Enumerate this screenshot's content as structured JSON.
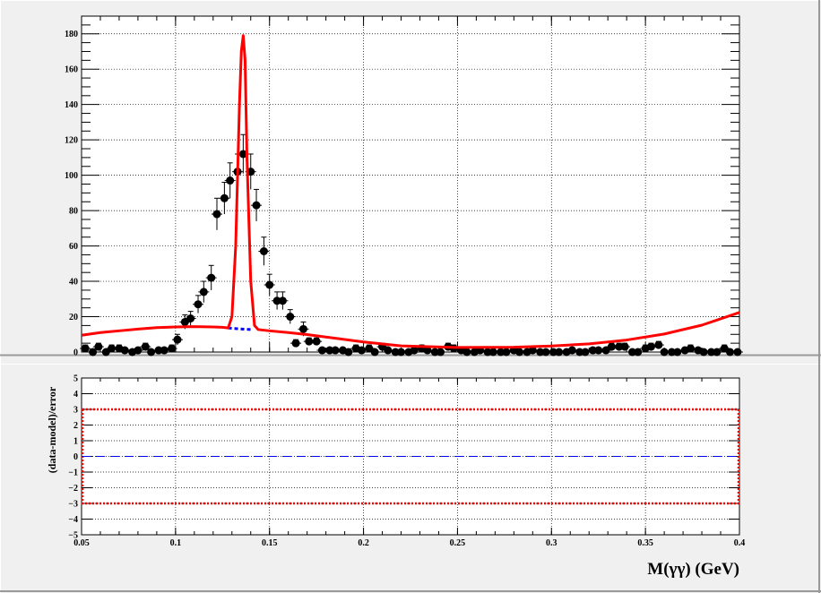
{
  "chart_data": [
    {
      "type": "scatter",
      "panel": "top",
      "title": "",
      "xlabel": "",
      "ylabel": "",
      "xlim": [
        0.05,
        0.4
      ],
      "ylim": [
        0,
        190
      ],
      "grid": true,
      "x_ticks": [
        "0.05",
        "0.1",
        "0.15",
        "0.2",
        "0.25",
        "0.3",
        "0.35",
        "0.4"
      ],
      "y_ticks": [
        "0",
        "20",
        "40",
        "60",
        "80",
        "100",
        "120",
        "140",
        "160",
        "180"
      ],
      "colors": {
        "data": "#000000",
        "model": "#ff0000",
        "background": "#0000ff"
      },
      "series": [
        {
          "kind": "points_with_errors",
          "x": [
            0.052,
            0.056,
            0.059,
            0.063,
            0.066,
            0.07,
            0.073,
            0.077,
            0.08,
            0.084,
            0.087,
            0.091,
            0.094,
            0.098,
            0.101,
            0.105,
            0.108,
            0.112,
            0.115,
            0.119,
            0.122,
            0.126,
            0.129,
            0.133,
            0.136,
            0.14,
            0.143,
            0.147,
            0.15,
            0.154,
            0.157,
            0.161,
            0.164,
            0.168,
            0.171,
            0.175,
            0.178,
            0.182,
            0.185,
            0.189,
            0.192,
            0.196,
            0.199,
            0.203,
            0.206,
            0.21,
            0.213,
            0.217,
            0.22,
            0.224,
            0.227,
            0.231,
            0.234,
            0.238,
            0.241,
            0.245,
            0.248,
            0.252,
            0.255,
            0.259,
            0.262,
            0.266,
            0.269,
            0.273,
            0.276,
            0.28,
            0.283,
            0.287,
            0.29,
            0.294,
            0.297,
            0.301,
            0.304,
            0.308,
            0.311,
            0.315,
            0.318,
            0.322,
            0.325,
            0.329,
            0.332,
            0.336,
            0.339,
            0.343,
            0.346,
            0.35,
            0.353,
            0.357,
            0.36,
            0.364,
            0.367,
            0.371,
            0.374,
            0.378,
            0.381,
            0.385,
            0.388,
            0.392,
            0.395,
            0.399
          ],
          "y": [
            2,
            0,
            3,
            0,
            2,
            2,
            1,
            0,
            1,
            3,
            0,
            1,
            1,
            2,
            7,
            17,
            19,
            27,
            34,
            42,
            78,
            87,
            97,
            102,
            112,
            102,
            83,
            57,
            38,
            29,
            29,
            20,
            5,
            13,
            6,
            6,
            1,
            1,
            1,
            1,
            0,
            2,
            1,
            2,
            0,
            3,
            1,
            0,
            0,
            0,
            1,
            2,
            1,
            0,
            0,
            3,
            2,
            1,
            0,
            0,
            1,
            0,
            0,
            0,
            0,
            1,
            0,
            0,
            1,
            0,
            0,
            0,
            0,
            0,
            1,
            0,
            0,
            1,
            1,
            1,
            3,
            3,
            3,
            0,
            0,
            2,
            3,
            4,
            0,
            0,
            0,
            1,
            2,
            1,
            0,
            0,
            0,
            2,
            0,
            0
          ],
          "errors": [
            2,
            1,
            2,
            1,
            2,
            2,
            1,
            1,
            1,
            2,
            1,
            1,
            1,
            2,
            3,
            4,
            4,
            5,
            6,
            7,
            9,
            9,
            10,
            10,
            11,
            10,
            9,
            8,
            6,
            5,
            5,
            4,
            2,
            4,
            2,
            2,
            1,
            1,
            1,
            1,
            1,
            2,
            1,
            2,
            1,
            2,
            1,
            1,
            1,
            1,
            1,
            2,
            1,
            1,
            1,
            2,
            2,
            1,
            1,
            1,
            1,
            1,
            1,
            1,
            1,
            1,
            1,
            1,
            1,
            1,
            1,
            1,
            1,
            1,
            1,
            1,
            1,
            1,
            1,
            1,
            2,
            2,
            2,
            1,
            1,
            2,
            2,
            2,
            1,
            1,
            1,
            1,
            2,
            1,
            1,
            1,
            1,
            2,
            1,
            1
          ]
        },
        {
          "kind": "model_curve",
          "x": [
            0.05,
            0.06,
            0.07,
            0.08,
            0.09,
            0.1,
            0.11,
            0.12,
            0.125,
            0.128,
            0.13,
            0.132,
            0.134,
            0.135,
            0.136,
            0.137,
            0.138,
            0.14,
            0.142,
            0.144,
            0.15,
            0.16,
            0.17,
            0.18,
            0.2,
            0.22,
            0.25,
            0.28,
            0.3,
            0.32,
            0.34,
            0.36,
            0.38,
            0.4
          ],
          "y": [
            9.5,
            11,
            12,
            13,
            13.8,
            14.2,
            14.4,
            14.2,
            14,
            13.6,
            20,
            60,
            140,
            170,
            179,
            165,
            110,
            40,
            15,
            12.7,
            12,
            11,
            9.9,
            8.5,
            5.7,
            3.5,
            2.6,
            2.7,
            3.4,
            4.6,
            6.8,
            10.2,
            15.2,
            22.4
          ]
        },
        {
          "kind": "background_curve",
          "x": [
            0.128,
            0.131,
            0.134,
            0.137,
            0.14
          ],
          "y": [
            13.6,
            13.3,
            13.1,
            12.9,
            12.7
          ]
        }
      ]
    },
    {
      "type": "line",
      "panel": "bottom",
      "title": "",
      "xlabel": "M(γγ) (GeV)",
      "ylabel": "(data-model)/error",
      "xlim": [
        0.05,
        0.4
      ],
      "ylim": [
        -5,
        5
      ],
      "grid": true,
      "x_ticks": [
        "0.05",
        "0.1",
        "0.15",
        "0.2",
        "0.25",
        "0.3",
        "0.35",
        "0.4"
      ],
      "y_ticks": [
        "−5",
        "−4",
        "−3",
        "−2",
        "−1",
        "0",
        "1",
        "2",
        "3",
        "4",
        "5"
      ],
      "colors": {
        "band": "#ff0000",
        "zero_line": "#0000ff"
      },
      "series": [
        {
          "kind": "upper_band",
          "value": 3
        },
        {
          "kind": "lower_band",
          "value": -3
        },
        {
          "kind": "zero_line",
          "value": 0
        }
      ]
    }
  ]
}
